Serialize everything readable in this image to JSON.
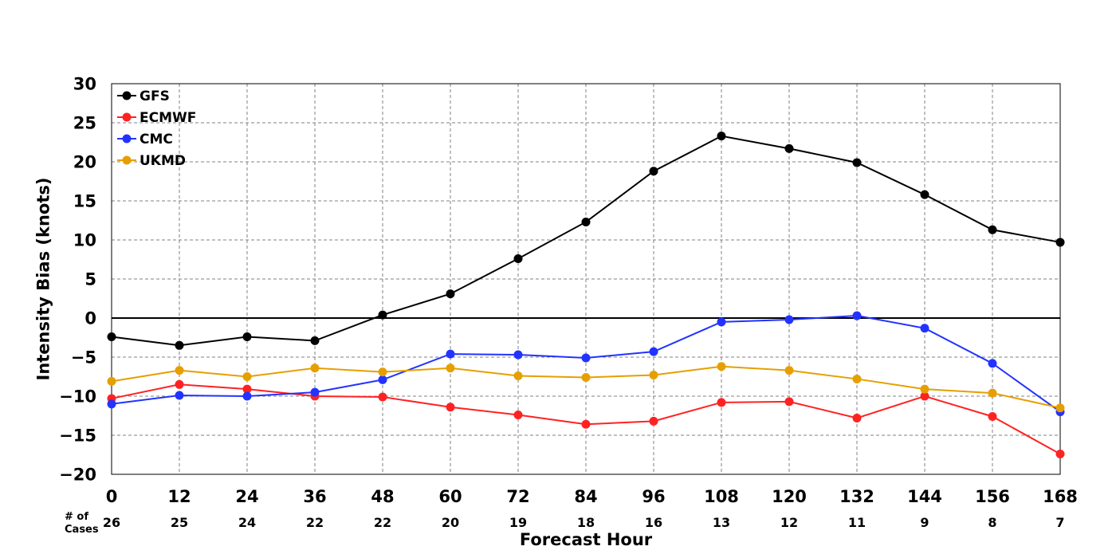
{
  "chart_data": {
    "type": "line",
    "title": "",
    "xlabel": "Forecast Hour",
    "ylabel": "Intensity Bias (knots)",
    "x": [
      0,
      12,
      24,
      36,
      48,
      60,
      72,
      84,
      96,
      108,
      120,
      132,
      144,
      156,
      168
    ],
    "x_tick_labels": [
      "0",
      "12",
      "24",
      "36",
      "48",
      "60",
      "72",
      "84",
      "96",
      "108",
      "120",
      "132",
      "144",
      "156",
      "168"
    ],
    "xlim": [
      0,
      168
    ],
    "ylim": [
      -20,
      30
    ],
    "y_ticks": [
      -20,
      -15,
      -10,
      -5,
      0,
      5,
      10,
      15,
      20,
      25,
      30
    ],
    "y_tick_labels": [
      "−20",
      "−15",
      "−10",
      "−5",
      "0",
      "5",
      "10",
      "15",
      "20",
      "25",
      "30"
    ],
    "grid": true,
    "zero_line": true,
    "legend_position": "top-left",
    "cases_label_line1": "# of",
    "cases_label_line2": "Cases",
    "cases": [
      "26",
      "25",
      "24",
      "22",
      "22",
      "20",
      "19",
      "18",
      "16",
      "13",
      "12",
      "11",
      "9",
      "8",
      "7"
    ],
    "series": [
      {
        "name": "GFS",
        "color": "#000000",
        "values": [
          -2.4,
          -3.5,
          -2.4,
          -2.9,
          0.4,
          3.1,
          7.6,
          12.3,
          18.8,
          23.3,
          21.7,
          19.9,
          15.8,
          11.3,
          9.7
        ]
      },
      {
        "name": "ECMWF",
        "color": "#ff2222",
        "values": [
          -10.3,
          -8.5,
          -9.1,
          -10.0,
          -10.1,
          -11.4,
          -12.4,
          -13.6,
          -13.2,
          -10.8,
          -10.7,
          -12.8,
          -10.0,
          -12.6,
          -17.4
        ]
      },
      {
        "name": "CMC",
        "color": "#2233ff",
        "values": [
          -11.0,
          -9.9,
          -10.0,
          -9.5,
          -7.9,
          -4.6,
          -4.7,
          -5.1,
          -4.3,
          -0.5,
          -0.2,
          0.3,
          -1.3,
          -5.8,
          -12.0
        ]
      },
      {
        "name": "UKMD",
        "color": "#e69f00",
        "values": [
          -8.1,
          -6.7,
          -7.5,
          -6.4,
          -6.9,
          -6.4,
          -7.4,
          -7.6,
          -7.3,
          -6.2,
          -6.7,
          -7.8,
          -9.1,
          -9.6,
          -11.5
        ]
      }
    ]
  }
}
